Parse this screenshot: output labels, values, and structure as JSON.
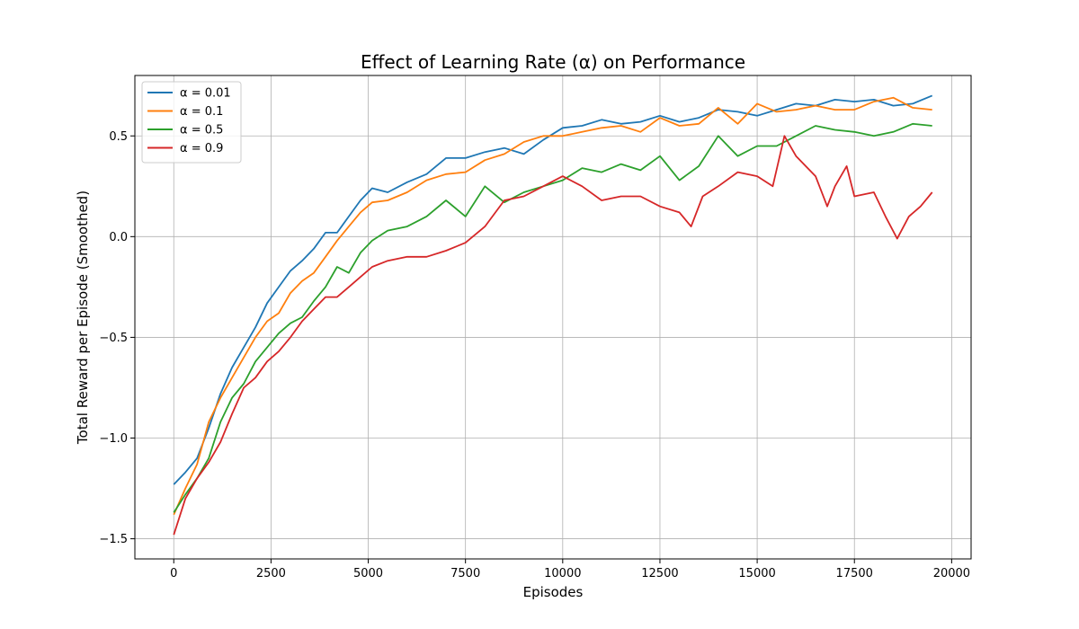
{
  "chart_data": {
    "type": "line",
    "title": "Effect of Learning Rate (α) on Performance",
    "xlabel": "Episodes",
    "ylabel": "Total Reward per Episode (Smoothed)",
    "xlim": [
      -1000,
      20500
    ],
    "ylim": [
      -1.6,
      0.8
    ],
    "xticks": [
      0,
      2500,
      5000,
      7500,
      10000,
      12500,
      15000,
      17500,
      20000
    ],
    "xtick_labels": [
      "0",
      "2500",
      "5000",
      "7500",
      "10000",
      "12500",
      "15000",
      "17500",
      "20000"
    ],
    "yticks": [
      -1.5,
      -1.0,
      -0.5,
      0.0,
      0.5
    ],
    "ytick_labels": [
      "−1.5",
      "−1.0",
      "−0.5",
      "0.0",
      "0.5"
    ],
    "grid": true,
    "legend_position": "top-left",
    "series": [
      {
        "name": "α = 0.01",
        "color": "#1f77b4",
        "x": [
          0,
          300,
          600,
          900,
          1200,
          1500,
          1800,
          2100,
          2400,
          2700,
          3000,
          3300,
          3600,
          3900,
          4200,
          4500,
          4800,
          5100,
          5500,
          6000,
          6500,
          7000,
          7500,
          8000,
          8500,
          9000,
          9500,
          10000,
          10500,
          11000,
          11500,
          12000,
          12500,
          13000,
          13500,
          14000,
          14500,
          15000,
          15500,
          16000,
          16500,
          17000,
          17500,
          18000,
          18500,
          19000,
          19500
        ],
        "y": [
          -1.23,
          -1.17,
          -1.1,
          -0.95,
          -0.78,
          -0.65,
          -0.55,
          -0.45,
          -0.33,
          -0.25,
          -0.17,
          -0.12,
          -0.06,
          0.02,
          0.02,
          0.1,
          0.18,
          0.24,
          0.22,
          0.27,
          0.31,
          0.39,
          0.39,
          0.42,
          0.44,
          0.41,
          0.48,
          0.54,
          0.55,
          0.58,
          0.56,
          0.57,
          0.6,
          0.57,
          0.59,
          0.63,
          0.62,
          0.6,
          0.63,
          0.66,
          0.65,
          0.68,
          0.67,
          0.68,
          0.65,
          0.66,
          0.7
        ]
      },
      {
        "name": "α = 0.1",
        "color": "#ff7f0e",
        "x": [
          0,
          300,
          600,
          900,
          1200,
          1500,
          1800,
          2100,
          2400,
          2700,
          3000,
          3300,
          3600,
          3900,
          4200,
          4500,
          4800,
          5100,
          5500,
          6000,
          6500,
          7000,
          7500,
          8000,
          8500,
          9000,
          9500,
          10000,
          10500,
          11000,
          11500,
          12000,
          12500,
          13000,
          13500,
          14000,
          14500,
          15000,
          15500,
          16000,
          16500,
          17000,
          17500,
          18000,
          18500,
          19000,
          19500
        ],
        "y": [
          -1.38,
          -1.25,
          -1.13,
          -0.92,
          -0.8,
          -0.7,
          -0.6,
          -0.5,
          -0.42,
          -0.38,
          -0.28,
          -0.22,
          -0.18,
          -0.1,
          -0.02,
          0.05,
          0.12,
          0.17,
          0.18,
          0.22,
          0.28,
          0.31,
          0.32,
          0.38,
          0.41,
          0.47,
          0.5,
          0.5,
          0.52,
          0.54,
          0.55,
          0.52,
          0.59,
          0.55,
          0.56,
          0.64,
          0.56,
          0.66,
          0.62,
          0.63,
          0.65,
          0.63,
          0.63,
          0.67,
          0.69,
          0.64,
          0.63
        ]
      },
      {
        "name": "α = 0.5",
        "color": "#2ca02c",
        "x": [
          0,
          300,
          600,
          900,
          1200,
          1500,
          1800,
          2100,
          2400,
          2700,
          3000,
          3300,
          3600,
          3900,
          4200,
          4500,
          4800,
          5100,
          5500,
          6000,
          6500,
          7000,
          7500,
          8000,
          8500,
          9000,
          9500,
          10000,
          10500,
          11000,
          11500,
          12000,
          12500,
          13000,
          13500,
          14000,
          14500,
          15000,
          15500,
          16000,
          16500,
          17000,
          17500,
          18000,
          18500,
          19000,
          19500
        ],
        "y": [
          -1.37,
          -1.28,
          -1.2,
          -1.1,
          -0.92,
          -0.8,
          -0.73,
          -0.62,
          -0.55,
          -0.48,
          -0.43,
          -0.4,
          -0.32,
          -0.25,
          -0.15,
          -0.18,
          -0.08,
          -0.02,
          0.03,
          0.05,
          0.1,
          0.18,
          0.1,
          0.25,
          0.17,
          0.22,
          0.25,
          0.28,
          0.34,
          0.32,
          0.36,
          0.33,
          0.4,
          0.28,
          0.35,
          0.5,
          0.4,
          0.45,
          0.45,
          0.5,
          0.55,
          0.53,
          0.52,
          0.5,
          0.52,
          0.56,
          0.55
        ]
      },
      {
        "name": "α = 0.9",
        "color": "#d62728",
        "x": [
          0,
          300,
          600,
          900,
          1200,
          1500,
          1800,
          2100,
          2400,
          2700,
          3000,
          3300,
          3600,
          3900,
          4200,
          4500,
          4800,
          5100,
          5500,
          6000,
          6500,
          7000,
          7500,
          8000,
          8500,
          9000,
          9500,
          10000,
          10500,
          11000,
          11500,
          12000,
          12500,
          13000,
          13300,
          13600,
          14000,
          14500,
          15000,
          15400,
          15700,
          16000,
          16500,
          16800,
          17000,
          17300,
          17500,
          18000,
          18300,
          18600,
          18900,
          19200,
          19500
        ],
        "y": [
          -1.48,
          -1.3,
          -1.2,
          -1.12,
          -1.02,
          -0.88,
          -0.75,
          -0.7,
          -0.62,
          -0.57,
          -0.5,
          -0.42,
          -0.36,
          -0.3,
          -0.3,
          -0.25,
          -0.2,
          -0.15,
          -0.12,
          -0.1,
          -0.1,
          -0.07,
          -0.03,
          0.05,
          0.18,
          0.2,
          0.25,
          0.3,
          0.25,
          0.18,
          0.2,
          0.2,
          0.15,
          0.12,
          0.05,
          0.2,
          0.25,
          0.32,
          0.3,
          0.25,
          0.5,
          0.4,
          0.3,
          0.15,
          0.25,
          0.35,
          0.2,
          0.22,
          0.1,
          -0.01,
          0.1,
          0.15,
          0.22
        ]
      }
    ]
  }
}
